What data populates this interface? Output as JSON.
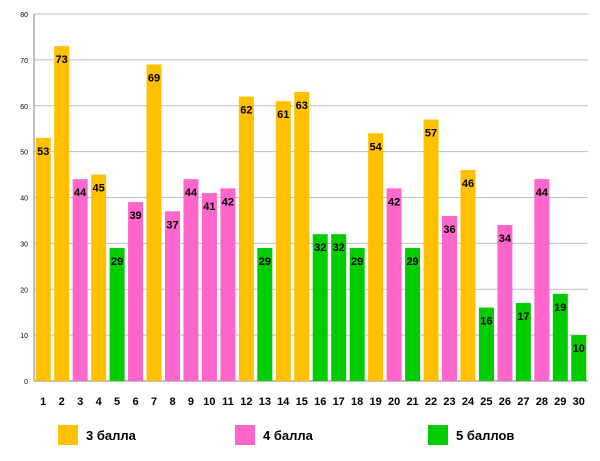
{
  "chart_data": {
    "type": "bar",
    "title": "",
    "xlabel": "",
    "ylabel": "",
    "ylim": [
      0,
      80
    ],
    "yticks": [
      0,
      10,
      20,
      30,
      40,
      50,
      60,
      70,
      80
    ],
    "grid": true,
    "categories": [
      "1",
      "2",
      "3",
      "4",
      "5",
      "6",
      "7",
      "8",
      "9",
      "10",
      "11",
      "12",
      "13",
      "14",
      "15",
      "16",
      "17",
      "18",
      "19",
      "20",
      "21",
      "22",
      "23",
      "24",
      "25",
      "26",
      "27",
      "28",
      "29",
      "30"
    ],
    "values": [
      53,
      73,
      44,
      45,
      29,
      39,
      69,
      37,
      44,
      41,
      42,
      62,
      29,
      61,
      63,
      32,
      32,
      29,
      54,
      42,
      29,
      57,
      36,
      46,
      16,
      34,
      17,
      44,
      19,
      10
    ],
    "groups": [
      0,
      0,
      1,
      0,
      2,
      1,
      0,
      1,
      1,
      1,
      1,
      0,
      2,
      0,
      0,
      2,
      2,
      2,
      0,
      1,
      2,
      0,
      1,
      0,
      2,
      1,
      2,
      1,
      2,
      2
    ],
    "series": [
      {
        "name": "3 балла",
        "color": "#FFC000"
      },
      {
        "name": "4 балла",
        "color": "#FF66CC"
      },
      {
        "name": "5 баллов",
        "color": "#00CC00"
      }
    ],
    "legend_position": "bottom"
  }
}
